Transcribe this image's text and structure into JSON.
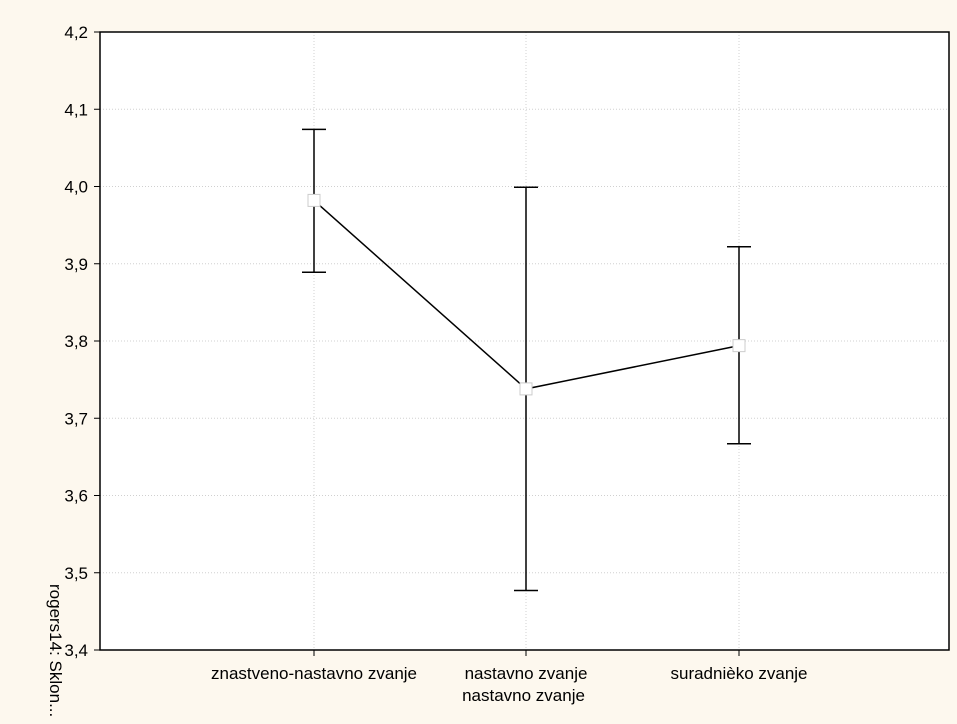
{
  "chart_data": {
    "type": "line",
    "title": "",
    "xlabel": "nastavno zvanje",
    "ylabel": "rogers14: Sklon...",
    "categories": [
      "znastveno-nastavno zvanje",
      "nastavno zvanje",
      "suradnièko zvanje"
    ],
    "series": [
      {
        "values": [
          3.982,
          3.738,
          3.794
        ],
        "error_upper": [
          4.074,
          3.999,
          3.922
        ],
        "error_lower": [
          3.889,
          3.477,
          3.667
        ]
      }
    ],
    "yticks": [
      "4,2",
      "4,1",
      "4,0",
      "3,9",
      "3,8",
      "3,7",
      "3,6",
      "3,5",
      "3,4"
    ],
    "ylim": [
      3.4,
      4.2
    ],
    "grid": true,
    "legend": "none",
    "colors": {
      "background": "#fdf8ee",
      "plot": "#ffffff",
      "line": "#000000",
      "grid": "#d0d0d0"
    }
  }
}
